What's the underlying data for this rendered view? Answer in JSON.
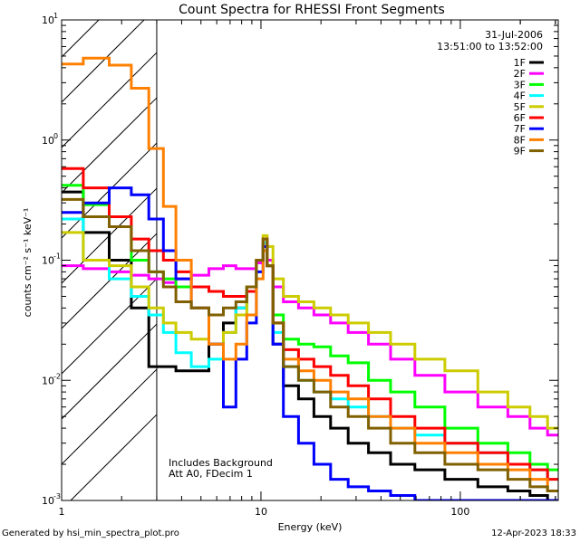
{
  "chart_data": {
    "type": "line",
    "title": "Count Spectra for RHESSI Front Segments",
    "xlabel": "Energy (keV)",
    "ylabel": "counts cm⁻² s⁻¹ keV⁻¹",
    "xscale": "log",
    "yscale": "log",
    "xlim": [
      1,
      310
    ],
    "ylim": [
      0.001,
      10
    ],
    "x_ticks": [
      {
        "value": 1,
        "label": "1"
      },
      {
        "value": 10,
        "label": "10"
      },
      {
        "value": 100,
        "label": "100"
      }
    ],
    "y_ticks": [
      {
        "value": 0.001,
        "base": "10",
        "exp": "-3"
      },
      {
        "value": 0.01,
        "base": "10",
        "exp": "-2"
      },
      {
        "value": 0.1,
        "base": "10",
        "exp": "-1"
      },
      {
        "value": 1,
        "base": "10",
        "exp": "0"
      },
      {
        "value": 10,
        "base": "10",
        "exp": "1"
      }
    ],
    "date": "31-Jul-2006",
    "time_range": "13:51:00 to 13:52:00",
    "hatched_region_max_kev": 3,
    "annotations": [
      "Includes Background",
      "Att A0, FDecim 1"
    ],
    "legend_position": "top-right",
    "series": [
      {
        "name": "1F",
        "color": "#000000",
        "x": [
          1.1,
          1.5,
          2,
          2.5,
          3,
          3.5,
          4,
          5,
          6,
          7,
          8,
          9,
          10,
          10.5,
          11,
          12,
          14,
          17,
          20,
          25,
          30,
          40,
          50,
          70,
          100,
          150,
          200,
          250,
          300
        ],
        "values": [
          0.37,
          0.17,
          0.1,
          0.04,
          0.013,
          0.013,
          0.012,
          0.012,
          0.02,
          0.03,
          0.04,
          0.06,
          0.1,
          0.13,
          0.09,
          0.02,
          0.009,
          0.007,
          0.005,
          0.004,
          0.003,
          0.0025,
          0.002,
          0.0018,
          0.0015,
          0.0013,
          0.0012,
          0.0011,
          0.001
        ]
      },
      {
        "name": "2F",
        "color": "#ff00ff",
        "x": [
          1.1,
          1.5,
          2,
          2.5,
          3,
          3.5,
          4,
          5,
          6,
          7,
          8,
          9,
          10,
          10.5,
          11,
          12,
          14,
          17,
          20,
          25,
          30,
          40,
          50,
          70,
          100,
          150,
          200,
          250,
          300
        ],
        "values": [
          0.09,
          0.085,
          0.08,
          0.075,
          0.07,
          0.065,
          0.07,
          0.075,
          0.085,
          0.09,
          0.085,
          0.085,
          0.095,
          0.13,
          0.1,
          0.06,
          0.045,
          0.04,
          0.035,
          0.03,
          0.025,
          0.02,
          0.015,
          0.011,
          0.008,
          0.006,
          0.005,
          0.004,
          0.0035
        ]
      },
      {
        "name": "3F",
        "color": "#00ff00",
        "x": [
          1.1,
          1.5,
          2,
          2.5,
          3,
          3.5,
          4,
          5,
          6,
          7,
          8,
          9,
          10,
          10.5,
          11,
          12,
          14,
          17,
          20,
          25,
          30,
          40,
          50,
          70,
          100,
          150,
          200,
          250,
          300
        ],
        "values": [
          0.42,
          0.29,
          0.19,
          0.1,
          0.08,
          0.07,
          0.06,
          0.06,
          0.055,
          0.05,
          0.05,
          0.055,
          0.1,
          0.14,
          0.09,
          0.035,
          0.022,
          0.02,
          0.019,
          0.016,
          0.014,
          0.01,
          0.008,
          0.006,
          0.004,
          0.003,
          0.0025,
          0.002,
          0.0018
        ]
      },
      {
        "name": "4F",
        "color": "#00ffff",
        "x": [
          1.1,
          1.5,
          2,
          2.5,
          3,
          3.5,
          4,
          5,
          6,
          7,
          8,
          9,
          10,
          10.5,
          11,
          12,
          14,
          17,
          20,
          25,
          30,
          40,
          50,
          70,
          100,
          150,
          200,
          250,
          300
        ],
        "values": [
          0.22,
          0.1,
          0.07,
          0.05,
          0.035,
          0.025,
          0.017,
          0.013,
          0.015,
          0.025,
          0.04,
          0.06,
          0.1,
          0.14,
          0.09,
          0.025,
          0.013,
          0.01,
          0.008,
          0.007,
          0.006,
          0.005,
          0.004,
          0.0035,
          0.003,
          0.0025,
          0.002,
          0.0018,
          0.0015
        ]
      },
      {
        "name": "5F",
        "color": "#cccc00",
        "x": [
          1.1,
          1.5,
          2,
          2.5,
          3,
          3.5,
          4,
          5,
          6,
          7,
          8,
          9,
          10,
          10.5,
          11,
          12,
          14,
          17,
          20,
          25,
          30,
          40,
          50,
          70,
          100,
          150,
          200,
          250,
          300
        ],
        "values": [
          0.17,
          0.1,
          0.09,
          0.06,
          0.04,
          0.03,
          0.025,
          0.022,
          0.02,
          0.025,
          0.035,
          0.06,
          0.1,
          0.16,
          0.13,
          0.07,
          0.05,
          0.045,
          0.04,
          0.035,
          0.03,
          0.025,
          0.02,
          0.015,
          0.012,
          0.008,
          0.006,
          0.005,
          0.004
        ]
      },
      {
        "name": "6F",
        "color": "#ff0000",
        "x": [
          1.1,
          1.5,
          2,
          2.5,
          3,
          3.5,
          4,
          5,
          6,
          7,
          8,
          9,
          10,
          10.5,
          11,
          12,
          14,
          17,
          20,
          25,
          30,
          40,
          50,
          70,
          100,
          150,
          200,
          250,
          300
        ],
        "values": [
          0.58,
          0.4,
          0.23,
          0.15,
          0.12,
          0.1,
          0.08,
          0.06,
          0.055,
          0.05,
          0.05,
          0.055,
          0.1,
          0.15,
          0.09,
          0.03,
          0.018,
          0.015,
          0.013,
          0.011,
          0.009,
          0.007,
          0.005,
          0.004,
          0.003,
          0.0025,
          0.002,
          0.0018,
          0.0015
        ]
      },
      {
        "name": "7F",
        "color": "#0000ff",
        "x": [
          1.1,
          1.5,
          2,
          2.5,
          3,
          3.5,
          4,
          5,
          6,
          7,
          8,
          9,
          10,
          10.5,
          11,
          12,
          14,
          17,
          20,
          25,
          30,
          40,
          50,
          70,
          100,
          150,
          200,
          250,
          300
        ],
        "values": [
          0.25,
          0.3,
          0.4,
          0.35,
          0.22,
          0.12,
          0.07,
          0.04,
          0.02,
          0.006,
          0.015,
          0.03,
          0.08,
          0.13,
          0.09,
          0.02,
          0.005,
          0.003,
          0.002,
          0.0015,
          0.0013,
          0.0012,
          0.0011,
          0.001,
          0.001,
          0.001,
          0.001,
          0.001,
          0.001
        ]
      },
      {
        "name": "8F",
        "color": "#ff8000",
        "x": [
          1.1,
          1.5,
          2,
          2.5,
          3,
          3.5,
          4,
          5,
          6,
          7,
          8,
          9,
          10,
          10.5,
          11,
          12,
          14,
          17,
          20,
          25,
          30,
          40,
          50,
          70,
          100,
          150,
          200,
          250,
          300
        ],
        "values": [
          4.3,
          4.8,
          4.2,
          2.7,
          0.85,
          0.28,
          0.1,
          0.04,
          0.02,
          0.015,
          0.02,
          0.035,
          0.07,
          0.12,
          0.09,
          0.03,
          0.015,
          0.012,
          0.01,
          0.008,
          0.007,
          0.005,
          0.004,
          0.003,
          0.0025,
          0.002,
          0.0018,
          0.0015,
          0.0012
        ]
      },
      {
        "name": "9F",
        "color": "#806000",
        "x": [
          1.1,
          1.5,
          2,
          2.5,
          3,
          3.5,
          4,
          5,
          6,
          7,
          8,
          9,
          10,
          10.5,
          11,
          12,
          14,
          17,
          20,
          25,
          30,
          40,
          50,
          70,
          100,
          150,
          200,
          250,
          300
        ],
        "values": [
          0.32,
          0.23,
          0.19,
          0.12,
          0.08,
          0.06,
          0.045,
          0.04,
          0.035,
          0.04,
          0.045,
          0.06,
          0.1,
          0.15,
          0.09,
          0.03,
          0.013,
          0.01,
          0.008,
          0.006,
          0.005,
          0.004,
          0.003,
          0.0025,
          0.002,
          0.0018,
          0.0015,
          0.0013,
          0.0012
        ]
      }
    ]
  },
  "footer": {
    "generated_by": "Generated by hsi_min_spectra_plot.pro",
    "timestamp": "12-Apr-2023 18:33"
  }
}
